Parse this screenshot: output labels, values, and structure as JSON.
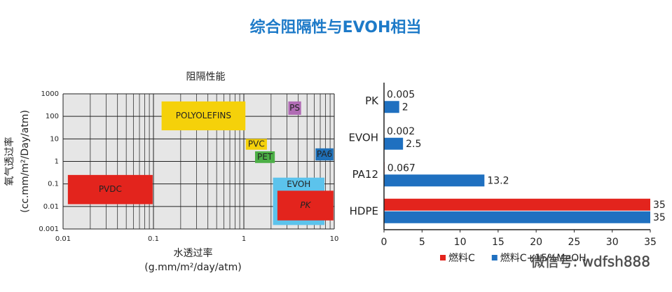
{
  "title": "综合阻隔性与EVOH相当",
  "watermark": "微信号: wdfsh888",
  "chart_data": [
    {
      "type": "region",
      "title": "阻隔性能",
      "xlabel": [
        "水透过率",
        "(g.mm/m²/day/atm)"
      ],
      "ylabel": [
        "氧气透过率",
        "(cc.mm/m²/Day/atm)"
      ],
      "xscale": "log",
      "yscale": "log",
      "minor_grid": true,
      "xlim": [
        0.01,
        10
      ],
      "ylim": [
        0.001,
        1000
      ],
      "xticks": [
        0.01,
        0.1,
        1,
        10
      ],
      "yticks": [
        0.001,
        0.01,
        0.1,
        1,
        10,
        100,
        1000
      ],
      "regions": [
        {
          "name": "EVOH",
          "x": [
            2.1,
            7.8
          ],
          "y": [
            0.0015,
            0.19
          ],
          "color": "#5cc3ec",
          "text_color": "#1a1a1a",
          "label_position": "top"
        },
        {
          "name": "PVDC",
          "x": [
            0.0113,
            0.098
          ],
          "y": [
            0.0126,
            0.25
          ],
          "color": "#e3241d",
          "text_color": "#ffffff"
        },
        {
          "name": "POLYOLEFINS",
          "x": [
            0.123,
            1.04
          ],
          "y": [
            24,
            460
          ],
          "color": "#f5d10a",
          "text_color": "#ffffff"
        },
        {
          "name": "PVC",
          "x": [
            1.05,
            1.8
          ],
          "y": [
            3.3,
            10
          ],
          "color": "#f5d10a",
          "text_color": "#e3241d"
        },
        {
          "name": "PET",
          "x": [
            1.33,
            2.2
          ],
          "y": [
            0.85,
            2.8
          ],
          "color": "#4caf46",
          "text_color": "#ffffff"
        },
        {
          "name": "PS",
          "x": [
            3.1,
            4.3
          ],
          "y": [
            117,
            460
          ],
          "color": "#b06cb4",
          "text_color": "#ffffff"
        },
        {
          "name": "PA6",
          "x": [
            6.2,
            9.8
          ],
          "y": [
            1.1,
            3.8
          ],
          "color": "#1f70b8",
          "text_color": "#ffffff"
        },
        {
          "name": "PK",
          "x": [
            2.35,
            9.8
          ],
          "y": [
            0.0024,
            0.05
          ],
          "color": "#e3241d",
          "text_color": "#ffffff",
          "italic": true
        }
      ]
    },
    {
      "type": "barh",
      "categories": [
        "PK",
        "EVOH",
        "PA12",
        "HDPE"
      ],
      "series": [
        {
          "name": "燃料C",
          "color": "#e3241d",
          "values": [
            0.005,
            0.002,
            0.067,
            35
          ]
        },
        {
          "name": "燃料C+15%MeOH",
          "color": "#1f70c0",
          "values": [
            2,
            2.5,
            13.2,
            35
          ]
        }
      ],
      "xlim": [
        0,
        35
      ],
      "xticks": [
        0,
        5,
        10,
        15,
        20,
        25,
        30,
        35
      ],
      "legend": "bottom",
      "value_labels_shown": true
    }
  ]
}
